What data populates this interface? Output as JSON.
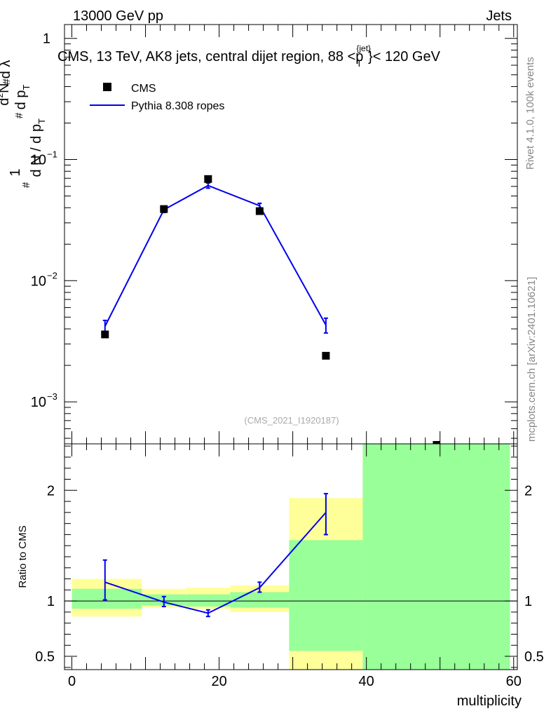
{
  "header": {
    "left": "13000 GeV pp",
    "right": "Jets"
  },
  "title": {
    "main": "CMS, 13 TeV, AK8 jets, central dijet region, 88 <p",
    "sub": "T",
    "sup": "{jet}",
    "tail": "}< 120 GeV"
  },
  "side_label_top": "Rivet 4.1.0,  100k events",
  "side_label_bottom": "mcplots.cern.ch [arXiv:2401.10621]",
  "watermark": "(CMS_2021_I1920187)",
  "ylabel_main": {
    "pieces": [
      "#",
      "1",
      "d N / d p",
      "T",
      "#",
      "d",
      "2",
      "N",
      "d p",
      "T",
      "#",
      "d λ"
    ]
  },
  "legend": {
    "data_label": "CMS",
    "mc_label": "Pythia 8.308 ropes"
  },
  "colors": {
    "data": "#000000",
    "mc": "#0000ee",
    "band_outer": "#ffff99",
    "band_inner": "#99ff99"
  },
  "chart_data": [
    {
      "type": "scatter",
      "name": "main-panel",
      "yscale": "log",
      "ylim": [
        0.00045,
        1.3
      ],
      "xlim": [
        -1,
        60.5
      ],
      "yticks": [
        {
          "value": 1,
          "base": "1",
          "exp": ""
        },
        {
          "value": 0.1,
          "base": "10",
          "exp": "−1"
        },
        {
          "value": 0.01,
          "base": "10",
          "exp": "−2"
        },
        {
          "value": 0.001,
          "base": "10",
          "exp": "−3"
        }
      ],
      "bin_edges": [
        0,
        9.5,
        15.5,
        21.5,
        29.5,
        39.5,
        59.5
      ],
      "data": {
        "name": "CMS",
        "x": [
          4.5,
          12.5,
          18.5,
          25.5,
          34.5,
          49.5
        ],
        "y": [
          0.0036,
          0.039,
          0.069,
          0.0375,
          0.0024,
          0.00043
        ]
      },
      "mc": {
        "name": "Pythia 8.308 ropes",
        "x": [
          4.5,
          12.5,
          18.5,
          25.5,
          34.5
        ],
        "y": [
          0.0042,
          0.0385,
          0.061,
          0.0415,
          0.0043
        ],
        "err_lo": [
          0.0036,
          0.0365,
          0.058,
          0.0395,
          0.0037
        ],
        "err_hi": [
          0.0047,
          0.0405,
          0.064,
          0.0435,
          0.0049
        ]
      }
    },
    {
      "type": "area",
      "name": "ratio-panel",
      "ylabel": "Ratio to CMS",
      "xlabel": "multiplicity",
      "ylim": [
        0.38,
        2.42
      ],
      "xlim": [
        -1,
        60.5
      ],
      "yticks": [
        {
          "value": 0.5,
          "label": "0.5"
        },
        {
          "value": 1,
          "label": "1"
        },
        {
          "value": 2,
          "label": "2"
        }
      ],
      "xticks": [
        {
          "value": 0,
          "label": "0"
        },
        {
          "value": 20,
          "label": "20"
        },
        {
          "value": 40,
          "label": "40"
        },
        {
          "value": 60,
          "label": "60"
        }
      ],
      "bins": [
        {
          "lo": 0,
          "hi": 9.5,
          "yellow": [
            0.86,
            1.2
          ],
          "green": [
            0.93,
            1.11
          ]
        },
        {
          "lo": 9.5,
          "hi": 15.5,
          "yellow": [
            0.94,
            1.11
          ],
          "green": [
            0.96,
            1.06
          ]
        },
        {
          "lo": 15.5,
          "hi": 21.5,
          "yellow": [
            0.93,
            1.12
          ],
          "green": [
            0.95,
            1.06
          ]
        },
        {
          "lo": 21.5,
          "hi": 29.5,
          "yellow": [
            0.9,
            1.14
          ],
          "green": [
            0.94,
            1.08
          ]
        },
        {
          "lo": 29.5,
          "hi": 39.5,
          "yellow": [
            0.38,
            1.93
          ],
          "green": [
            0.55,
            1.55
          ]
        },
        {
          "lo": 39.5,
          "hi": 59.5,
          "yellow": [
            0.38,
            2.42
          ],
          "green": [
            0.38,
            2.42
          ]
        }
      ],
      "mc_ratio": {
        "x": [
          4.5,
          12.5,
          18.5,
          25.5,
          34.5
        ],
        "y": [
          1.17,
          0.99,
          0.89,
          1.12,
          1.8
        ],
        "err_lo": [
          1.01,
          0.95,
          0.86,
          1.08,
          1.6
        ],
        "err_hi": [
          1.37,
          1.04,
          0.92,
          1.17,
          1.97
        ]
      }
    }
  ]
}
